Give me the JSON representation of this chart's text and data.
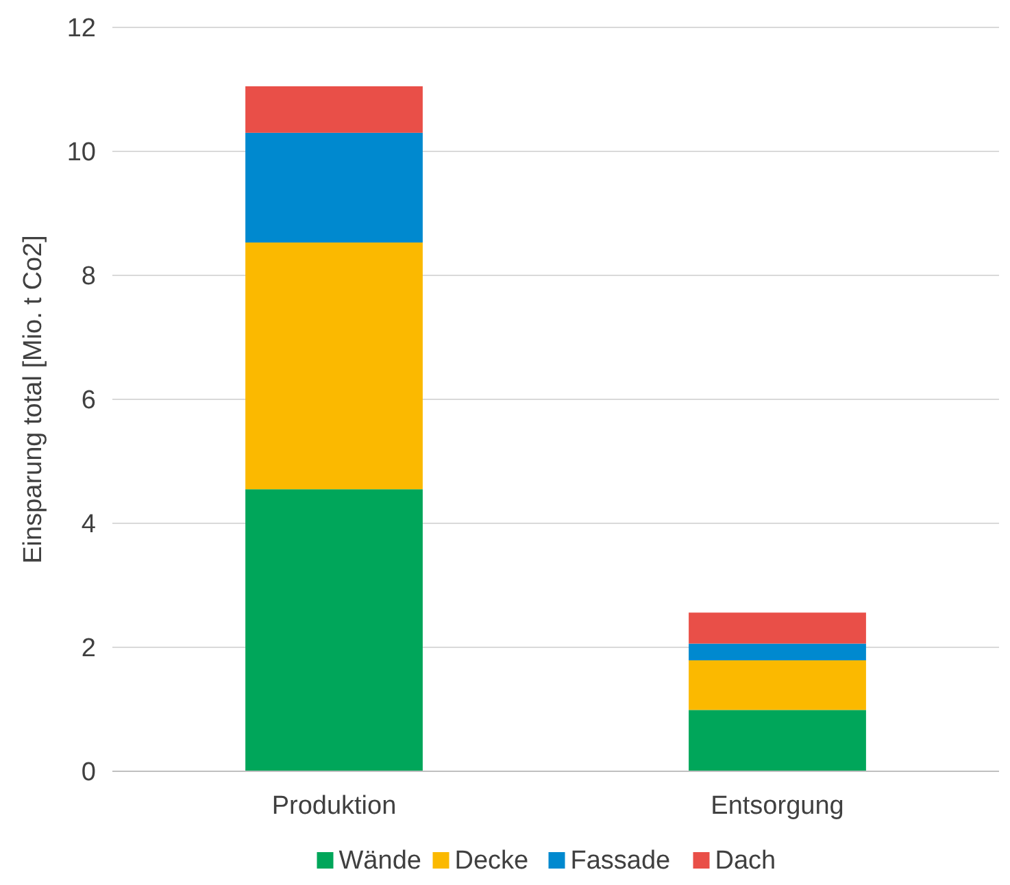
{
  "chart_data": {
    "type": "bar",
    "stacked": true,
    "ylabel": "Einsparung total [Mio. t Co2]",
    "categories": [
      "Produktion",
      "Entsorgung"
    ],
    "series": [
      {
        "name": "Wände",
        "color": "#00a65a",
        "values": [
          4.55,
          0.99
        ]
      },
      {
        "name": "Decke",
        "color": "#fbb900",
        "values": [
          3.98,
          0.8
        ]
      },
      {
        "name": "Fassade",
        "color": "#0089cf",
        "values": [
          1.77,
          0.27
        ]
      },
      {
        "name": "Dach",
        "color": "#e94f48",
        "values": [
          0.75,
          0.5
        ]
      }
    ],
    "ylim": [
      0,
      12
    ],
    "yticks": [
      0,
      2,
      4,
      6,
      8,
      10,
      12
    ],
    "grid": "y",
    "legend": "bottom"
  }
}
